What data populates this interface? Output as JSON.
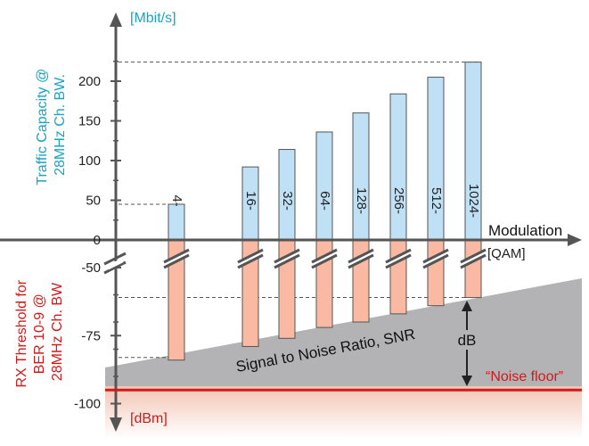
{
  "chart_data": {
    "type": "bar",
    "categories": [
      "4-",
      "16-",
      "32-",
      "64-",
      "128-",
      "256-",
      "512-",
      "1024-"
    ],
    "series": [
      {
        "values": [
          45,
          92,
          114,
          136,
          160,
          184,
          205,
          224
        ]
      },
      {
        "values": [
          -84,
          -79,
          -76,
          -72,
          -70,
          -67,
          -64,
          -61
        ]
      }
    ],
    "upper_axis": {
      "label": "Traffic Capacity @ 28MHz Ch. BW.",
      "unit": "[Mbit/s]",
      "ticks": [
        "0",
        "50",
        "100",
        "150",
        "200"
      ],
      "ylim": [
        0,
        240
      ]
    },
    "lower_axis": {
      "label": "RX Threshold for BER 10-9 @ 28MHz Ch. BW",
      "unit": "[dBm]",
      "ticks": [
        "-50",
        "-75",
        "-100"
      ],
      "ylim": [
        -105,
        -48
      ]
    },
    "x_axis": {
      "label": "Modulation",
      "unit": "[QAM]"
    },
    "annotations": {
      "snr_label": "Signal to Noise Ratio, SNR",
      "db_label": "dB",
      "noise_floor_label": "“Noise floor”",
      "noise_floor_value": -95
    },
    "colors": {
      "upper_bar": "#bfe0f5",
      "lower_bar": "#f9b9a2",
      "upper_axis_text": "#1aa3c4",
      "lower_axis_text": "#d11a1a",
      "noise_floor": "#d11a1a",
      "snr_region": "#b3b2b5"
    }
  }
}
